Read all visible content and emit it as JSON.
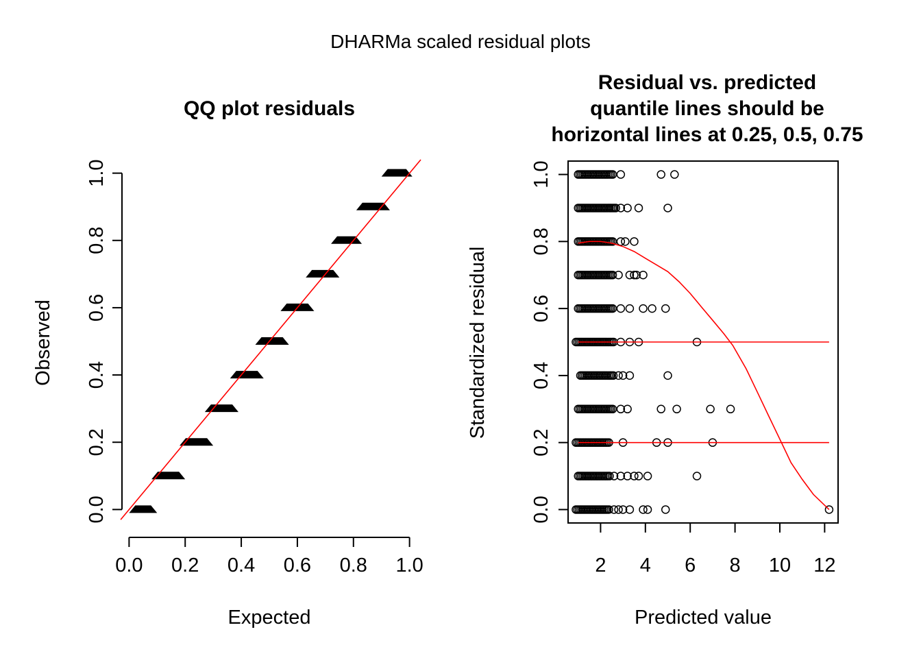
{
  "figure_title": "DHARMa scaled residual plots",
  "chart_data": [
    {
      "type": "scatter",
      "title": "QQ plot residuals",
      "xlabel": "Expected",
      "ylabel": "Observed",
      "xlim": [
        -0.04,
        1.04
      ],
      "ylim": [
        -0.04,
        1.04
      ],
      "x_ticks": [
        "0.0",
        "0.2",
        "0.4",
        "0.6",
        "0.8",
        "1.0"
      ],
      "y_ticks": [
        "0.0",
        "0.2",
        "0.4",
        "0.6",
        "0.8",
        "1.0"
      ],
      "frame": false,
      "observed_levels": [
        {
          "y": 0.0,
          "x_from": 0.0,
          "x_to": 0.1
        },
        {
          "y": 0.1,
          "x_from": 0.08,
          "x_to": 0.2
        },
        {
          "y": 0.2,
          "x_from": 0.18,
          "x_to": 0.3
        },
        {
          "y": 0.3,
          "x_from": 0.27,
          "x_to": 0.39
        },
        {
          "y": 0.4,
          "x_from": 0.36,
          "x_to": 0.48
        },
        {
          "y": 0.5,
          "x_from": 0.45,
          "x_to": 0.57
        },
        {
          "y": 0.6,
          "x_from": 0.54,
          "x_to": 0.66
        },
        {
          "y": 0.7,
          "x_from": 0.63,
          "x_to": 0.75
        },
        {
          "y": 0.8,
          "x_from": 0.72,
          "x_to": 0.83
        },
        {
          "y": 0.9,
          "x_from": 0.81,
          "x_to": 0.93
        },
        {
          "y": 1.0,
          "x_from": 0.9,
          "x_to": 1.01
        }
      ],
      "reference_line": {
        "intercept": 0,
        "slope": 1,
        "color": "#ff0000"
      }
    },
    {
      "type": "scatter",
      "title": "Residual vs. predicted\nquantile lines should be\nhorizontal lines at 0.25, 0.5, 0.75",
      "title_lines": [
        "Residual vs. predicted",
        "quantile lines should be",
        "horizontal lines at 0.25, 0.5, 0.75"
      ],
      "xlabel": "Predicted value",
      "ylabel": "Standardized residual",
      "xlim": [
        0.55,
        12.6
      ],
      "ylim": [
        -0.04,
        1.04
      ],
      "x_ticks": [
        "2",
        "4",
        "6",
        "8",
        "10",
        "12"
      ],
      "y_ticks": [
        "0.0",
        "0.2",
        "0.4",
        "0.6",
        "0.8",
        "1.0"
      ],
      "frame": true,
      "points": [
        {
          "y": 1.0,
          "x_dense": [
            1.0,
            2.6
          ],
          "x": [
            2.9,
            4.7,
            5.3
          ]
        },
        {
          "y": 0.9,
          "x_dense": [
            1.0,
            2.7
          ],
          "x": [
            2.9,
            3.2,
            3.7,
            5.0
          ]
        },
        {
          "y": 0.8,
          "x_dense": [
            1.0,
            2.6
          ],
          "x": [
            2.9,
            3.1,
            3.5
          ]
        },
        {
          "y": 0.7,
          "x_dense": [
            1.0,
            2.6
          ],
          "x": [
            2.8,
            3.3,
            3.5,
            3.6,
            3.9
          ]
        },
        {
          "y": 0.6,
          "x_dense": [
            1.0,
            2.6
          ],
          "x": [
            2.9,
            3.3,
            3.9,
            4.3,
            4.9
          ]
        },
        {
          "y": 0.5,
          "x_dense": [
            0.9,
            2.6
          ],
          "x": [
            2.9,
            3.3,
            3.7,
            6.3
          ]
        },
        {
          "y": 0.4,
          "x_dense": [
            1.1,
            2.6
          ],
          "x": [
            2.8,
            3.0,
            3.3,
            5.0
          ]
        },
        {
          "y": 0.3,
          "x_dense": [
            1.0,
            2.6
          ],
          "x": [
            2.9,
            3.2,
            4.7,
            5.4,
            6.9,
            7.8
          ]
        },
        {
          "y": 0.2,
          "x_dense": [
            0.9,
            2.4
          ],
          "x": [
            3.0,
            4.5,
            5.0,
            7.0
          ]
        },
        {
          "y": 0.1,
          "x_dense": [
            1.0,
            2.4
          ],
          "x": [
            2.6,
            2.9,
            3.2,
            3.5,
            3.7,
            4.1,
            6.3
          ]
        },
        {
          "y": 0.0,
          "x_dense": [
            0.9,
            2.4
          ],
          "x": [
            2.6,
            2.8,
            3.0,
            3.3,
            3.9,
            4.1,
            4.9,
            12.2
          ]
        }
      ],
      "quantile_lines": [
        {
          "name": "0.25",
          "points": [
            [
              1.0,
              0.2
            ],
            [
              12.2,
              0.2
            ]
          ],
          "color": "#ff0000"
        },
        {
          "name": "0.5",
          "points": [
            [
              1.0,
              0.5
            ],
            [
              12.2,
              0.5
            ]
          ],
          "color": "#ff0000"
        },
        {
          "name": "0.75",
          "points": [
            [
              1.0,
              0.795
            ],
            [
              1.5,
              0.8
            ],
            [
              2.0,
              0.8
            ],
            [
              2.5,
              0.795
            ],
            [
              3.0,
              0.785
            ],
            [
              3.5,
              0.77
            ],
            [
              4.0,
              0.75
            ],
            [
              4.5,
              0.73
            ],
            [
              5.0,
              0.71
            ],
            [
              5.5,
              0.68
            ],
            [
              6.0,
              0.645
            ],
            [
              6.5,
              0.605
            ],
            [
              7.0,
              0.565
            ],
            [
              7.5,
              0.525
            ],
            [
              7.9,
              0.49
            ],
            [
              8.5,
              0.42
            ],
            [
              9.0,
              0.35
            ],
            [
              9.5,
              0.28
            ],
            [
              10.0,
              0.21
            ],
            [
              10.5,
              0.14
            ],
            [
              11.0,
              0.09
            ],
            [
              11.5,
              0.045
            ],
            [
              12.2,
              0.0
            ]
          ],
          "color": "#ff0000"
        }
      ]
    }
  ]
}
